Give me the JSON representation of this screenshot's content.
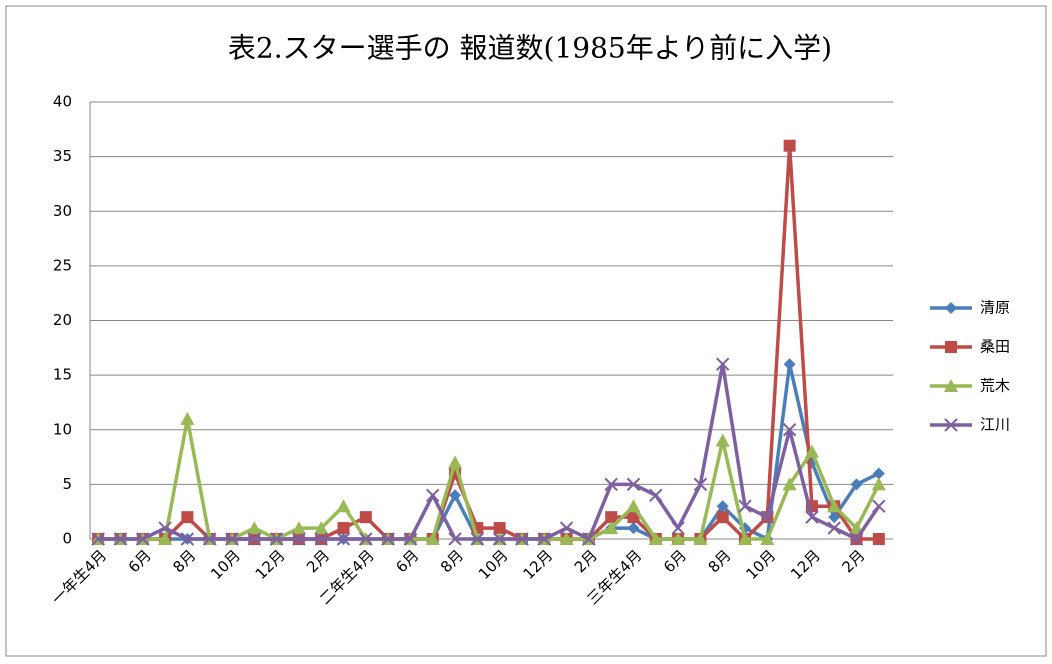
{
  "chart_data": {
    "type": "line",
    "title": "表2.スター選手の 報道数(1985年より前に入学)",
    "categories": [
      "一年生4月",
      null,
      "6月",
      null,
      "8月",
      null,
      "10月",
      null,
      "12月",
      null,
      "2月",
      null,
      "二年生4月",
      null,
      "6月",
      null,
      "8月",
      null,
      "10月",
      null,
      "12月",
      null,
      "2月",
      null,
      "三年生4月",
      null,
      "6月",
      null,
      "8月",
      null,
      "10月",
      null,
      "12月",
      null,
      "2月",
      null
    ],
    "series": [
      {
        "name": "清原",
        "color": "#4a7ebb",
        "marker": "diamond",
        "values": [
          0,
          0,
          0,
          0,
          0,
          0,
          0,
          0,
          0,
          0,
          0,
          0,
          0,
          0,
          0,
          0,
          4,
          0,
          0,
          0,
          0,
          0,
          0,
          1,
          1,
          0,
          0,
          0,
          3,
          1,
          0,
          16,
          7,
          2,
          5,
          6
        ]
      },
      {
        "name": "桑田",
        "color": "#be4b48",
        "marker": "square",
        "values": [
          0,
          0,
          0,
          0,
          2,
          0,
          0,
          0,
          0,
          0,
          0,
          1,
          2,
          0,
          0,
          0,
          6,
          1,
          1,
          0,
          0,
          0,
          0,
          2,
          2,
          0,
          0,
          0,
          2,
          0,
          2,
          36,
          3,
          3,
          0,
          0
        ]
      },
      {
        "name": "荒木",
        "color": "#98b954",
        "marker": "triangle",
        "values": [
          0,
          0,
          0,
          0,
          11,
          0,
          0,
          1,
          0,
          1,
          1,
          3,
          0,
          0,
          0,
          0,
          7,
          0,
          0,
          0,
          0,
          0,
          0,
          1,
          3,
          0,
          0,
          0,
          9,
          0,
          0,
          5,
          8,
          3,
          1,
          5
        ]
      },
      {
        "name": "江川",
        "color": "#7d60a0",
        "marker": "x",
        "values": [
          0,
          0,
          0,
          1,
          0,
          0,
          0,
          0,
          0,
          0,
          0,
          0,
          0,
          0,
          0,
          4,
          0,
          0,
          0,
          0,
          0,
          1,
          0,
          5,
          5,
          4,
          1,
          5,
          16,
          3,
          2,
          10,
          2,
          1,
          0,
          3
        ]
      }
    ],
    "ylim": [
      0,
      40
    ],
    "yticks": [
      0,
      5,
      10,
      15,
      20,
      25,
      30,
      35,
      40
    ],
    "grid": true,
    "legend": "right"
  }
}
